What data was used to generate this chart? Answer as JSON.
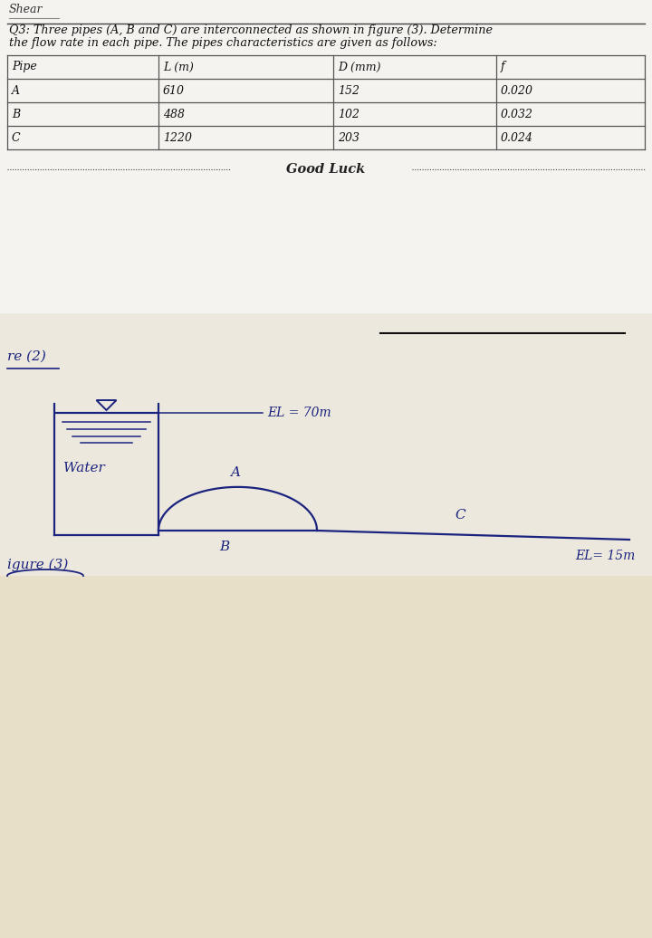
{
  "header_text": "Shear",
  "question_line1": "Q3: Three pipes (A, B and C) are interconnected as shown in figure (3). Determine",
  "question_line2": "the flow rate in each pipe. The pipes characteristics are given as follows:",
  "table_headers": [
    "Pipe",
    "L (m)",
    "D (mm)",
    "f"
  ],
  "table_rows": [
    [
      "A",
      "610",
      "152",
      "0.020"
    ],
    [
      "B",
      "488",
      "102",
      "0.032"
    ],
    [
      "C",
      "1220",
      "203",
      "0.024"
    ]
  ],
  "good_luck_text": "Good Luck",
  "fig2_label": "re (2)",
  "fig3_label": "igure (3)",
  "el_top": "EL = 70m",
  "el_bottom": "EL= 15m",
  "water_label": "Water",
  "pipe_a_label": "A",
  "pipe_b_label": "B",
  "pipe_c_label": "C",
  "bg_top": "#f0eee8",
  "bg_bottom": "#e8dfc8",
  "line_color": "#1a237e",
  "table_line_color": "#555555",
  "text_color_header": "#333333",
  "text_color_table": "#111111",
  "good_luck_line_color": "#555555"
}
